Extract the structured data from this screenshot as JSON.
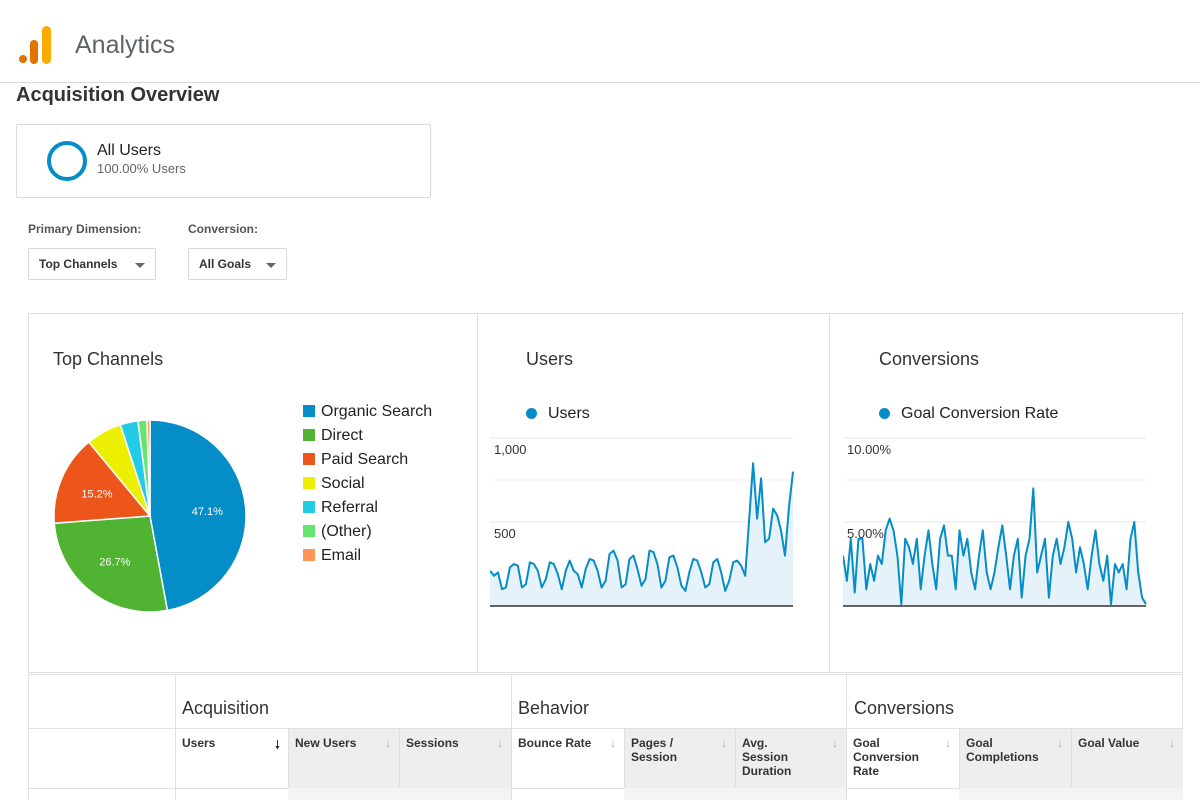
{
  "app": {
    "title": "Analytics"
  },
  "page": {
    "title": "Acquisition Overview"
  },
  "segment": {
    "name": "All Users",
    "detail": "100.00% Users",
    "color": "#058dc7"
  },
  "controls": {
    "primary_dimension_label": "Primary Dimension:",
    "primary_dimension_value": "Top Channels",
    "conversion_label": "Conversion:",
    "conversion_value": "All Goals"
  },
  "top_channels": {
    "title": "Top Channels",
    "chart_data": {
      "type": "pie",
      "slices": [
        {
          "label": "Organic Search",
          "value": 47.1,
          "color": "#058dc7",
          "value_label": "47.1%"
        },
        {
          "label": "Direct",
          "value": 26.7,
          "color": "#50b432",
          "value_label": "26.7%"
        },
        {
          "label": "Paid Search",
          "value": 15.2,
          "color": "#ed561b",
          "value_label": "15.2%"
        },
        {
          "label": "Social",
          "value": 6.0,
          "color": "#edef00",
          "value_label": ""
        },
        {
          "label": "Referral",
          "value": 3.0,
          "color": "#24cbe5",
          "value_label": ""
        },
        {
          "label": "(Other)",
          "value": 1.5,
          "color": "#64e572",
          "value_label": ""
        },
        {
          "label": "Email",
          "value": 0.5,
          "color": "#ff9655",
          "value_label": ""
        }
      ]
    }
  },
  "users_chart": {
    "title": "Users",
    "series_label": "Users",
    "chart_data": {
      "type": "area",
      "ylim": [
        0,
        1000
      ],
      "ytick_labels": [
        "1,000",
        "500"
      ],
      "yticks": [
        1000,
        500
      ],
      "color": "#058dc7",
      "values": [
        210,
        180,
        200,
        100,
        110,
        230,
        250,
        240,
        110,
        130,
        260,
        250,
        210,
        110,
        160,
        260,
        250,
        190,
        100,
        210,
        270,
        210,
        190,
        110,
        220,
        280,
        270,
        210,
        110,
        150,
        310,
        330,
        270,
        110,
        130,
        280,
        300,
        220,
        120,
        160,
        330,
        320,
        250,
        110,
        150,
        290,
        300,
        230,
        120,
        90,
        200,
        280,
        270,
        200,
        110,
        130,
        260,
        280,
        200,
        90,
        150,
        260,
        270,
        240,
        180,
        510,
        850,
        520,
        760,
        380,
        400,
        580,
        540,
        450,
        300,
        590,
        800
      ]
    }
  },
  "conversions_chart": {
    "title": "Conversions",
    "series_label": "Goal Conversion Rate",
    "chart_data": {
      "type": "area",
      "ylim": [
        0,
        10
      ],
      "ytick_labels": [
        "10.00%",
        "5.00%"
      ],
      "yticks": [
        10,
        5
      ],
      "color": "#058dc7",
      "values": [
        3.0,
        1.5,
        4.0,
        0.8,
        4.0,
        4.0,
        1.0,
        2.5,
        1.5,
        3.0,
        2.5,
        4.5,
        5.2,
        4.5,
        3.0,
        0.1,
        4.0,
        3.5,
        2.5,
        4.0,
        1.0,
        3.0,
        4.5,
        2.5,
        1.0,
        4.0,
        4.8,
        3.0,
        3.0,
        1.0,
        4.5,
        3.0,
        4.0,
        2.0,
        1.0,
        3.0,
        4.5,
        2.0,
        1.0,
        2.0,
        3.5,
        4.8,
        3.0,
        1.0,
        3.0,
        4.0,
        0.5,
        3.0,
        4.0,
        7.0,
        2.0,
        3.0,
        4.0,
        0.5,
        3.0,
        4.0,
        2.5,
        3.5,
        5.0,
        4.0,
        2.0,
        3.5,
        2.5,
        1.0,
        3.0,
        4.5,
        2.5,
        1.5,
        3.0,
        0.1,
        2.5,
        2.0,
        2.5,
        1.0,
        4.0,
        5.0,
        2.0,
        0.5,
        0.1
      ]
    }
  },
  "table": {
    "groups": [
      "Acquisition",
      "Behavior",
      "Conversions"
    ],
    "columns": [
      "Users",
      "New Users",
      "Sessions",
      "Bounce Rate",
      "Pages / Session",
      "Avg. Session Duration",
      "Goal Conversion Rate",
      "Goal Completions",
      "Goal Value"
    ]
  }
}
